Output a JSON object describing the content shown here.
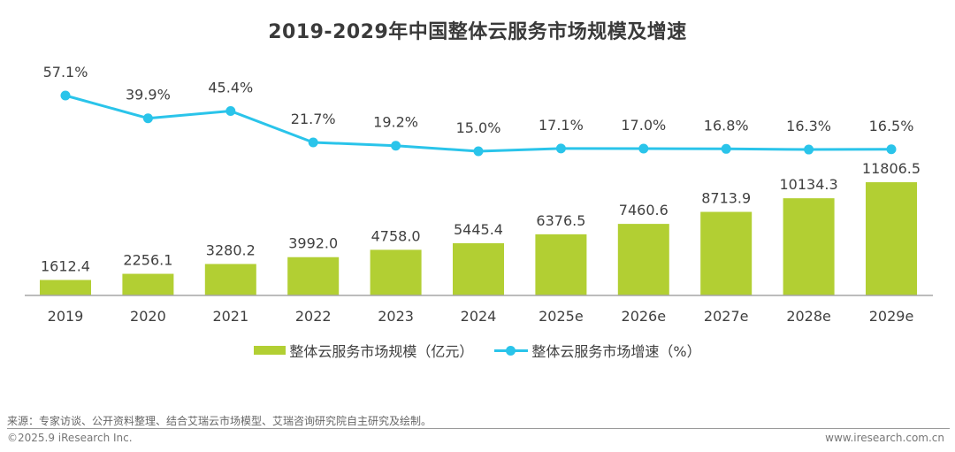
{
  "chart_data": {
    "type": "bar",
    "title": "2019-2029年中国整体云服务市场规模及增速",
    "categories": [
      "2019",
      "2020",
      "2021",
      "2022",
      "2023",
      "2024",
      "2025e",
      "2026e",
      "2027e",
      "2028e",
      "2029e"
    ],
    "series": [
      {
        "name": "整体云服务市场规模（亿元）",
        "type": "bar",
        "color": "#b2cf33",
        "values": [
          1612.4,
          2256.1,
          3280.2,
          3992.0,
          4758.0,
          5445.4,
          6376.5,
          7460.6,
          8713.9,
          10134.3,
          11806.5
        ],
        "labels": [
          "1612.4",
          "2256.1",
          "3280.2",
          "3992.0",
          "4758.0",
          "5445.4",
          "6376.5",
          "7460.6",
          "8713.9",
          "10134.3",
          "11806.5"
        ]
      },
      {
        "name": "整体云服务市场增速（%）",
        "type": "line",
        "color": "#2ac4ea",
        "values": [
          57.1,
          39.9,
          45.4,
          21.7,
          19.2,
          15.0,
          17.1,
          17.0,
          16.8,
          16.3,
          16.5
        ],
        "labels": [
          "57.1%",
          "39.9%",
          "45.4%",
          "21.7%",
          "19.2%",
          "15.0%",
          "17.1%",
          "17.0%",
          "16.8%",
          "16.3%",
          "16.5%"
        ]
      }
    ],
    "xlabel": "",
    "ylabel": "",
    "grid": false,
    "legend": "bottom-center"
  },
  "legend": {
    "bar_label": "整体云服务市场规模（亿元）",
    "line_label": "整体云服务市场增速（%）"
  },
  "footer": {
    "source": "来源：专家访谈、公开资料整理、结合艾瑞云市场模型、艾瑞咨询研究院自主研究及绘制。",
    "copyright": "©2025.9 iResearch Inc.",
    "website": "www.iresearch.com.cn"
  }
}
